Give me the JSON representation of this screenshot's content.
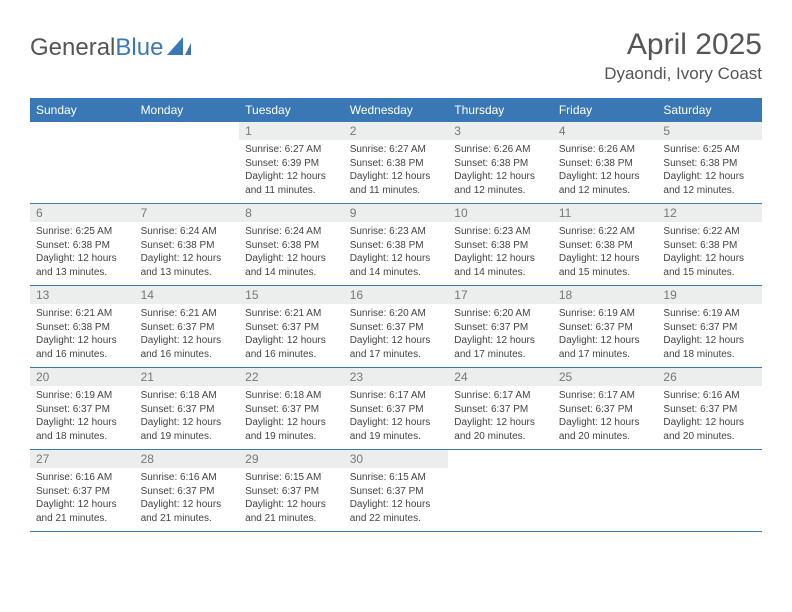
{
  "brand": {
    "part1": "General",
    "part2": "Blue"
  },
  "title": "April 2025",
  "location": "Dyaondi, Ivory Coast",
  "colors": {
    "header_bg": "#3a78b5",
    "daynum_bg": "#eceded",
    "border": "#3a78b5",
    "text": "#444444",
    "title_text": "#555555"
  },
  "day_names": [
    "Sunday",
    "Monday",
    "Tuesday",
    "Wednesday",
    "Thursday",
    "Friday",
    "Saturday"
  ],
  "weeks": [
    [
      null,
      null,
      {
        "n": "1",
        "sr": "Sunrise: 6:27 AM",
        "ss": "Sunset: 6:39 PM",
        "dl": "Daylight: 12 hours and 11 minutes."
      },
      {
        "n": "2",
        "sr": "Sunrise: 6:27 AM",
        "ss": "Sunset: 6:38 PM",
        "dl": "Daylight: 12 hours and 11 minutes."
      },
      {
        "n": "3",
        "sr": "Sunrise: 6:26 AM",
        "ss": "Sunset: 6:38 PM",
        "dl": "Daylight: 12 hours and 12 minutes."
      },
      {
        "n": "4",
        "sr": "Sunrise: 6:26 AM",
        "ss": "Sunset: 6:38 PM",
        "dl": "Daylight: 12 hours and 12 minutes."
      },
      {
        "n": "5",
        "sr": "Sunrise: 6:25 AM",
        "ss": "Sunset: 6:38 PM",
        "dl": "Daylight: 12 hours and 12 minutes."
      }
    ],
    [
      {
        "n": "6",
        "sr": "Sunrise: 6:25 AM",
        "ss": "Sunset: 6:38 PM",
        "dl": "Daylight: 12 hours and 13 minutes."
      },
      {
        "n": "7",
        "sr": "Sunrise: 6:24 AM",
        "ss": "Sunset: 6:38 PM",
        "dl": "Daylight: 12 hours and 13 minutes."
      },
      {
        "n": "8",
        "sr": "Sunrise: 6:24 AM",
        "ss": "Sunset: 6:38 PM",
        "dl": "Daylight: 12 hours and 14 minutes."
      },
      {
        "n": "9",
        "sr": "Sunrise: 6:23 AM",
        "ss": "Sunset: 6:38 PM",
        "dl": "Daylight: 12 hours and 14 minutes."
      },
      {
        "n": "10",
        "sr": "Sunrise: 6:23 AM",
        "ss": "Sunset: 6:38 PM",
        "dl": "Daylight: 12 hours and 14 minutes."
      },
      {
        "n": "11",
        "sr": "Sunrise: 6:22 AM",
        "ss": "Sunset: 6:38 PM",
        "dl": "Daylight: 12 hours and 15 minutes."
      },
      {
        "n": "12",
        "sr": "Sunrise: 6:22 AM",
        "ss": "Sunset: 6:38 PM",
        "dl": "Daylight: 12 hours and 15 minutes."
      }
    ],
    [
      {
        "n": "13",
        "sr": "Sunrise: 6:21 AM",
        "ss": "Sunset: 6:38 PM",
        "dl": "Daylight: 12 hours and 16 minutes."
      },
      {
        "n": "14",
        "sr": "Sunrise: 6:21 AM",
        "ss": "Sunset: 6:37 PM",
        "dl": "Daylight: 12 hours and 16 minutes."
      },
      {
        "n": "15",
        "sr": "Sunrise: 6:21 AM",
        "ss": "Sunset: 6:37 PM",
        "dl": "Daylight: 12 hours and 16 minutes."
      },
      {
        "n": "16",
        "sr": "Sunrise: 6:20 AM",
        "ss": "Sunset: 6:37 PM",
        "dl": "Daylight: 12 hours and 17 minutes."
      },
      {
        "n": "17",
        "sr": "Sunrise: 6:20 AM",
        "ss": "Sunset: 6:37 PM",
        "dl": "Daylight: 12 hours and 17 minutes."
      },
      {
        "n": "18",
        "sr": "Sunrise: 6:19 AM",
        "ss": "Sunset: 6:37 PM",
        "dl": "Daylight: 12 hours and 17 minutes."
      },
      {
        "n": "19",
        "sr": "Sunrise: 6:19 AM",
        "ss": "Sunset: 6:37 PM",
        "dl": "Daylight: 12 hours and 18 minutes."
      }
    ],
    [
      {
        "n": "20",
        "sr": "Sunrise: 6:19 AM",
        "ss": "Sunset: 6:37 PM",
        "dl": "Daylight: 12 hours and 18 minutes."
      },
      {
        "n": "21",
        "sr": "Sunrise: 6:18 AM",
        "ss": "Sunset: 6:37 PM",
        "dl": "Daylight: 12 hours and 19 minutes."
      },
      {
        "n": "22",
        "sr": "Sunrise: 6:18 AM",
        "ss": "Sunset: 6:37 PM",
        "dl": "Daylight: 12 hours and 19 minutes."
      },
      {
        "n": "23",
        "sr": "Sunrise: 6:17 AM",
        "ss": "Sunset: 6:37 PM",
        "dl": "Daylight: 12 hours and 19 minutes."
      },
      {
        "n": "24",
        "sr": "Sunrise: 6:17 AM",
        "ss": "Sunset: 6:37 PM",
        "dl": "Daylight: 12 hours and 20 minutes."
      },
      {
        "n": "25",
        "sr": "Sunrise: 6:17 AM",
        "ss": "Sunset: 6:37 PM",
        "dl": "Daylight: 12 hours and 20 minutes."
      },
      {
        "n": "26",
        "sr": "Sunrise: 6:16 AM",
        "ss": "Sunset: 6:37 PM",
        "dl": "Daylight: 12 hours and 20 minutes."
      }
    ],
    [
      {
        "n": "27",
        "sr": "Sunrise: 6:16 AM",
        "ss": "Sunset: 6:37 PM",
        "dl": "Daylight: 12 hours and 21 minutes."
      },
      {
        "n": "28",
        "sr": "Sunrise: 6:16 AM",
        "ss": "Sunset: 6:37 PM",
        "dl": "Daylight: 12 hours and 21 minutes."
      },
      {
        "n": "29",
        "sr": "Sunrise: 6:15 AM",
        "ss": "Sunset: 6:37 PM",
        "dl": "Daylight: 12 hours and 21 minutes."
      },
      {
        "n": "30",
        "sr": "Sunrise: 6:15 AM",
        "ss": "Sunset: 6:37 PM",
        "dl": "Daylight: 12 hours and 22 minutes."
      },
      null,
      null,
      null
    ]
  ]
}
